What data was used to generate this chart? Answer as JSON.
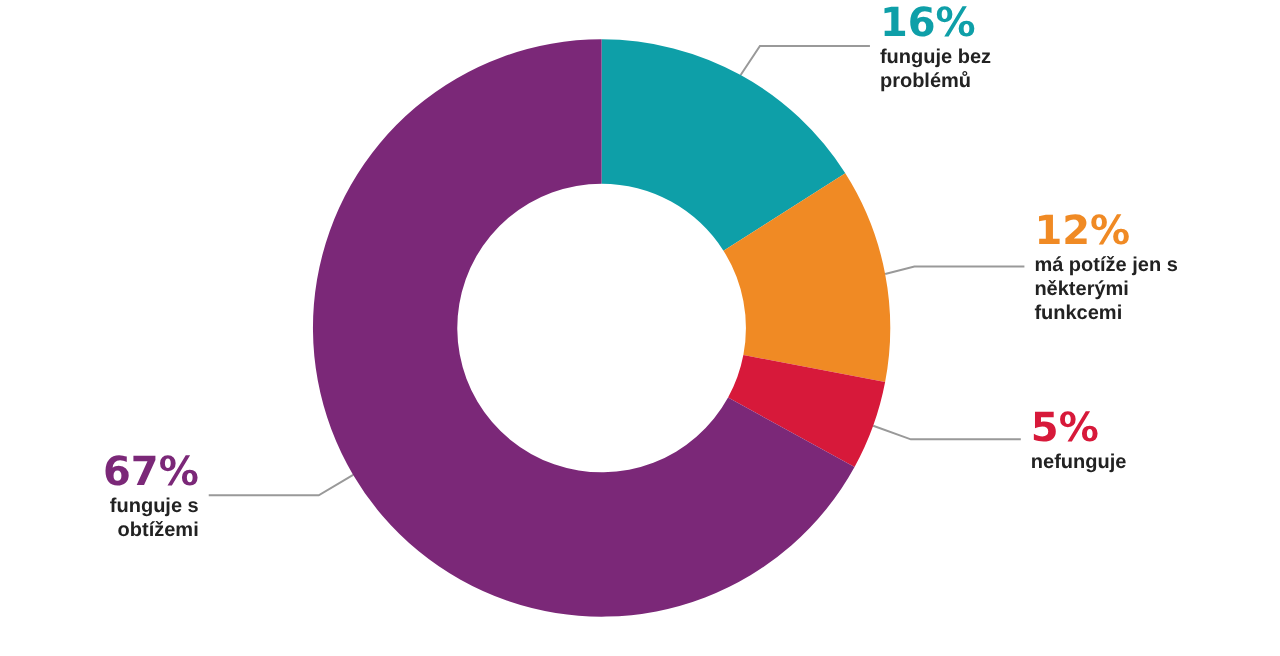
{
  "chart_data": {
    "type": "donut",
    "categories": [
      "funguje bez problémů",
      "má potíže jen s některými funkcemi",
      "nefunguje",
      "funguje s obtížemi"
    ],
    "values": [
      16,
      12,
      5,
      67
    ],
    "value_labels": [
      "16%",
      "12%",
      "5%",
      "67%"
    ],
    "colors": [
      "#0e9fa8",
      "#f08a24",
      "#d7193a",
      "#7b2878"
    ],
    "legend": false
  }
}
